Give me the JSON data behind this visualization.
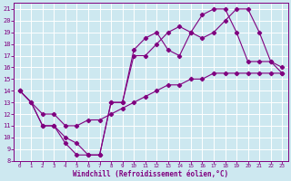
{
  "xlabel": "Windchill (Refroidissement éolien,°C)",
  "xlim": [
    -0.5,
    23.5
  ],
  "ylim": [
    8,
    21.5
  ],
  "xticks": [
    0,
    1,
    2,
    3,
    4,
    5,
    6,
    7,
    8,
    9,
    10,
    11,
    12,
    13,
    14,
    15,
    16,
    17,
    18,
    19,
    20,
    21,
    22,
    23
  ],
  "yticks": [
    8,
    9,
    10,
    11,
    12,
    13,
    14,
    15,
    16,
    17,
    18,
    19,
    20,
    21
  ],
  "bg_color": "#cde8f0",
  "line_color": "#800080",
  "grid_color": "#ffffff",
  "line1_x": [
    0,
    1,
    2,
    3,
    4,
    5,
    6,
    7,
    8,
    9,
    10,
    11,
    12,
    13,
    14,
    15,
    16,
    17,
    18,
    19,
    20,
    21,
    22,
    23
  ],
  "line1_y": [
    14,
    13,
    11,
    11,
    9.5,
    8.5,
    8.5,
    8.5,
    13,
    13,
    17.5,
    18.5,
    19,
    17.5,
    17,
    19,
    18.5,
    19,
    20,
    21,
    21,
    19,
    16.5,
    16
  ],
  "line2_x": [
    0,
    2,
    3,
    4,
    5,
    6,
    7,
    8,
    9,
    10,
    11,
    12,
    13,
    14,
    15,
    16,
    17,
    18,
    19,
    20,
    21,
    22,
    23
  ],
  "line2_y": [
    14,
    12,
    12,
    11,
    11,
    11.5,
    11.5,
    12,
    12.5,
    13,
    13.5,
    14,
    14.5,
    14.5,
    15,
    15,
    15.5,
    15.5,
    15.5,
    15.5,
    15.5,
    15.5,
    15.5
  ],
  "line3_x": [
    0,
    1,
    2,
    3,
    4,
    5,
    6,
    7,
    8,
    9,
    10,
    11,
    12,
    13,
    14,
    15,
    16,
    17,
    18,
    19,
    20,
    21,
    22,
    23
  ],
  "line3_y": [
    14,
    13,
    11,
    11,
    10,
    9.5,
    8.5,
    8.5,
    13,
    13,
    17,
    17,
    18,
    19,
    19.5,
    19,
    20.5,
    21,
    21,
    19,
    16.5,
    16.5,
    16.5,
    15.5
  ]
}
